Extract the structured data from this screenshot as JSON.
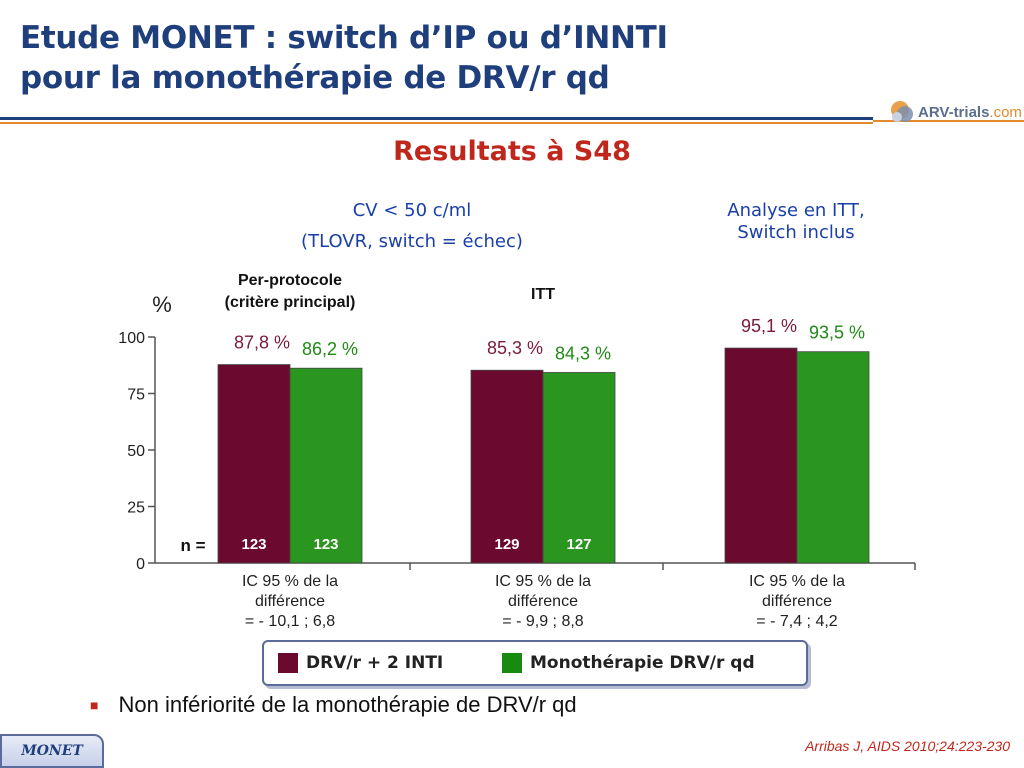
{
  "header": {
    "title_line1": "Etude MONET : switch d’IP ou d’INNTI",
    "title_line2": "pour la monothérapie de DRV/r qd",
    "logo_text": "ARV-trials",
    "logo_suffix": ".com",
    "subtitle": "Resultats à S48"
  },
  "annotations": {
    "cv_line1": "CV < 50 c/ml",
    "cv_line2": "(TLOVR, switch = échec)",
    "itt_switch_line1": "Analyse en ITT,",
    "itt_switch_line2": "Switch inclus"
  },
  "chart_data": {
    "type": "bar",
    "ylabel": "%",
    "ylim": [
      0,
      100
    ],
    "yticks": [
      0,
      25,
      50,
      75,
      100
    ],
    "n_label": "n =",
    "groups": [
      {
        "label_line1": "Per-protocole",
        "label_line2": "(critère principal)",
        "values": [
          87.8,
          86.2
        ],
        "value_labels": [
          "87,8 %",
          "86,2 %"
        ],
        "n": [
          "123",
          "123"
        ],
        "ci_line1": "IC 95 % de la",
        "ci_line2": "différence",
        "ci_line3": "= - 10,1 ; 6,8"
      },
      {
        "label_line1": "ITT",
        "label_line2": "",
        "values": [
          85.3,
          84.3
        ],
        "value_labels": [
          "85,3 %",
          "84,3 %"
        ],
        "n": [
          "129",
          "127"
        ],
        "ci_line1": "IC 95 % de la",
        "ci_line2": "différence",
        "ci_line3": "= - 9,9 ; 8,8"
      },
      {
        "label_line1": "",
        "label_line2": "",
        "values": [
          95.1,
          93.5
        ],
        "value_labels": [
          "95,1 %",
          "93,5 %"
        ],
        "n": [
          "",
          ""
        ],
        "ci_line1": "IC 95 % de la",
        "ci_line2": "différence",
        "ci_line3": "= - 7,4 ; 4,2"
      }
    ],
    "series": [
      {
        "name": "DRV/r + 2 INTI",
        "color": "#6b0a2e",
        "label_color": "#7b1a3c"
      },
      {
        "name": "Monothérapie DRV/r qd",
        "color": "#2a9620",
        "label_color": "#1f8a14"
      }
    ]
  },
  "bullet": {
    "text": "Non infériorité de la monothérapie de DRV/r qd"
  },
  "footer": {
    "badge": "MONET",
    "citation": "Arribas J, AIDS 2010;24:223-230"
  }
}
